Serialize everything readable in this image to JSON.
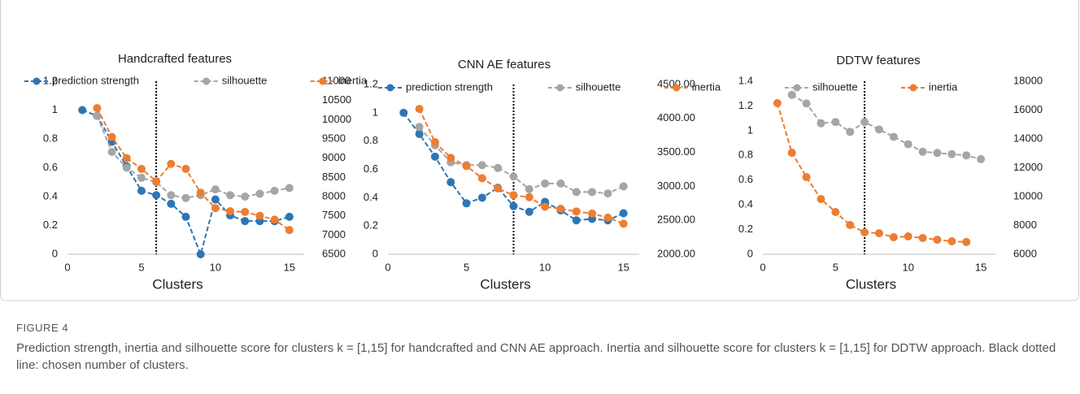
{
  "chart_data": [
    {
      "type": "line",
      "title": "Handcrafted features",
      "xlabel": "Clusters",
      "x": [
        1,
        2,
        3,
        4,
        5,
        6,
        7,
        8,
        9,
        10,
        11,
        12,
        13,
        14,
        15
      ],
      "xlim": [
        0,
        16
      ],
      "xticks": [
        0,
        5,
        10,
        15
      ],
      "ylim": [
        0,
        1.2
      ],
      "yticks": [
        0,
        0.2,
        0.4,
        0.6,
        0.8,
        1,
        1.2
      ],
      "y2lim": [
        6500,
        11000
      ],
      "y2ticks": [
        6500,
        7000,
        7500,
        8000,
        8500,
        9000,
        9500,
        10000,
        10500,
        11000
      ],
      "vline": 6,
      "series": [
        {
          "name": "prediction strength",
          "color": "#2e75b6",
          "values": [
            1.0,
            0.96,
            0.78,
            0.61,
            0.44,
            0.41,
            0.35,
            0.26,
            0.0,
            0.38,
            0.27,
            0.23,
            0.23,
            0.23,
            0.26
          ]
        },
        {
          "name": "silhouette",
          "color": "#a5a5a5",
          "values": [
            null,
            0.96,
            0.71,
            0.6,
            0.53,
            0.5,
            0.41,
            0.39,
            0.41,
            0.45,
            0.41,
            0.4,
            0.42,
            0.44,
            0.46
          ]
        },
        {
          "name": "inertia",
          "color": "#ed7d31",
          "axis": "y2",
          "values": [
            null,
            10300,
            9550,
            9000,
            8720,
            8400,
            8850,
            8720,
            8100,
            7700,
            7620,
            7600,
            7500,
            7400,
            7130
          ]
        }
      ]
    },
    {
      "type": "line",
      "title": "CNN AE features",
      "xlabel": "Clusters",
      "x": [
        1,
        2,
        3,
        4,
        5,
        6,
        7,
        8,
        9,
        10,
        11,
        12,
        13,
        14,
        15
      ],
      "xlim": [
        0,
        16
      ],
      "xticks": [
        0,
        5,
        10,
        15
      ],
      "ylim": [
        0,
        1.2
      ],
      "yticks": [
        0,
        0.2,
        0.4,
        0.6,
        0.8,
        1,
        1.2
      ],
      "y2lim": [
        2000,
        4500
      ],
      "y2ticks": [
        {
          "value": 2000,
          "label": "2000.00"
        },
        {
          "value": 2500,
          "label": "2500.00"
        },
        {
          "value": 3000,
          "label": "3000.00"
        },
        {
          "value": 3500,
          "label": "3500.00"
        },
        {
          "value": 4000,
          "label": "4000.00"
        },
        {
          "value": 4500,
          "label": "4500.00"
        }
      ],
      "vline": 8,
      "series": [
        {
          "name": "prediction strength",
          "color": "#2e75b6",
          "values": [
            1.0,
            0.85,
            0.69,
            0.51,
            0.36,
            0.4,
            0.47,
            0.34,
            0.3,
            0.37,
            0.31,
            0.24,
            0.25,
            0.24,
            0.29
          ]
        },
        {
          "name": "silhouette",
          "color": "#a5a5a5",
          "values": [
            null,
            0.9,
            0.77,
            0.65,
            0.63,
            0.63,
            0.61,
            0.55,
            0.46,
            0.5,
            0.5,
            0.44,
            0.44,
            0.43,
            0.48
          ]
        },
        {
          "name": "inertia",
          "color": "#ed7d31",
          "axis": "y2",
          "values": [
            null,
            4140,
            3650,
            3420,
            3300,
            3120,
            2970,
            2870,
            2840,
            2700,
            2670,
            2630,
            2600,
            2540,
            2450
          ]
        }
      ]
    },
    {
      "type": "line",
      "title": "DDTW features",
      "xlabel": "Clusters",
      "x": [
        1,
        2,
        3,
        4,
        5,
        6,
        7,
        8,
        9,
        10,
        11,
        12,
        13,
        14,
        15
      ],
      "xlim": [
        0,
        16
      ],
      "xticks": [
        0,
        5,
        10,
        15
      ],
      "ylim": [
        0,
        1.4
      ],
      "yticks": [
        0,
        0.2,
        0.4,
        0.6,
        0.8,
        1,
        1.2,
        1.4
      ],
      "y2lim": [
        6000,
        18000
      ],
      "y2ticks": [
        6000,
        8000,
        10000,
        12000,
        14000,
        16000,
        18000
      ],
      "vline": 7,
      "series": [
        {
          "name": "silhouette",
          "color": "#a5a5a5",
          "values": [
            null,
            1.29,
            1.22,
            1.06,
            1.07,
            0.99,
            1.07,
            1.01,
            0.95,
            0.89,
            0.83,
            0.82,
            0.81,
            0.8,
            0.77
          ]
        },
        {
          "name": "inertia",
          "color": "#ed7d31",
          "axis": "y2",
          "values": [
            16480,
            13040,
            11350,
            9830,
            8930,
            8030,
            7520,
            7460,
            7180,
            7240,
            7130,
            7010,
            6900,
            6850,
            null
          ]
        }
      ]
    }
  ],
  "caption": {
    "label": "FIGURE 4",
    "text": "Prediction strength, inertia and silhouette score for clusters k = [1,15] for handcrafted and CNN AE approach. Inertia and silhouette score for clusters k = [1,15] for DDTW approach. Black dotted line: chosen number of clusters."
  }
}
